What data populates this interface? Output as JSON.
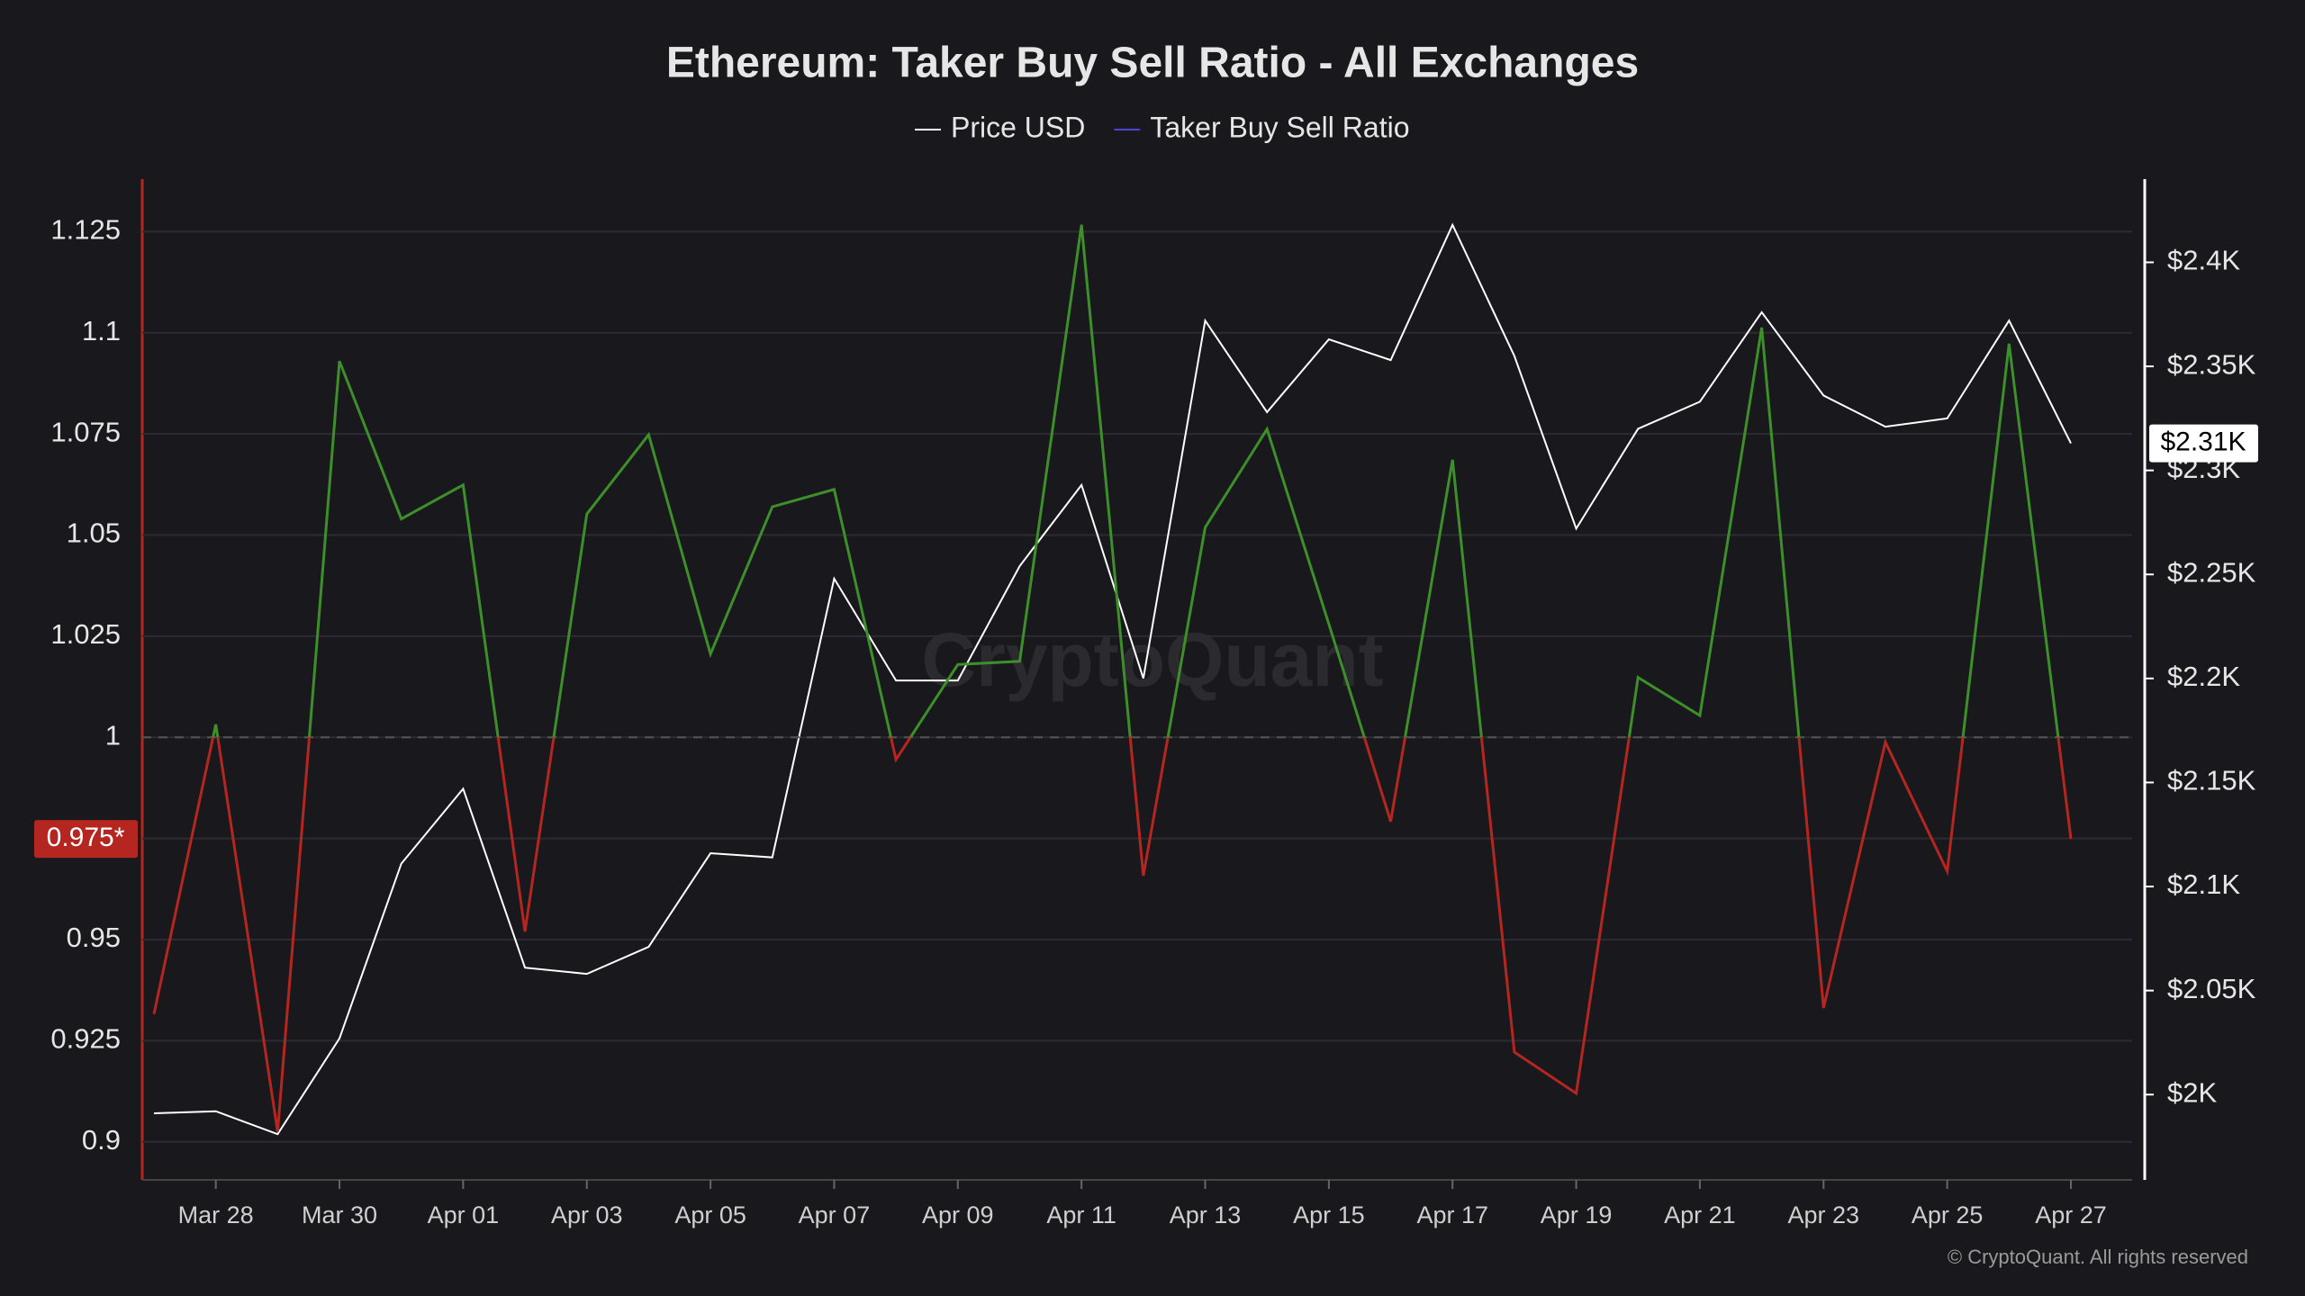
{
  "chart_data": {
    "type": "line",
    "title": "Ethereum: Taker Buy Sell Ratio - All Exchanges",
    "watermark": "CryptoQuant",
    "footer": "© CryptoQuant. All rights reserved",
    "categories": [
      null,
      "Mar 28",
      null,
      "Mar 30",
      null,
      "Apr 01",
      null,
      "Apr 03",
      null,
      "Apr 05",
      null,
      "Apr 07",
      null,
      "Apr 09",
      null,
      "Apr 11",
      null,
      "Apr 13",
      null,
      "Apr 15",
      null,
      "Apr 17",
      null,
      "Apr 19",
      null,
      "Apr 21",
      null,
      "Apr 23",
      null,
      "Apr 25",
      null,
      "Apr 27"
    ],
    "series": [
      {
        "name": "Price USD",
        "color": "#ffffff",
        "axis": "y2",
        "last_value_label": "$2.31K",
        "values": [
          1991,
          1992,
          1981,
          2027,
          2111,
          2147,
          2061,
          2058,
          2071,
          2116,
          2114,
          2248,
          2199,
          2199,
          2254,
          2293,
          2200,
          2372,
          2328,
          2363,
          2353,
          2418,
          2355,
          2272,
          2320,
          2333,
          2376,
          2336,
          2321,
          2325,
          2372,
          2313
        ]
      },
      {
        "name": "Taker Buy Sell Ratio",
        "color": "#4b45d6",
        "above_color": "#3d8f2a",
        "below_color": "#b4261f",
        "threshold": 1,
        "last_value_label": "0.975*",
        "values": [
          0.9316,
          1.0032,
          0.9025,
          1.093,
          1.054,
          1.0624,
          0.952,
          1.0552,
          1.0748,
          1.0206,
          1.057,
          1.0613,
          0.9945,
          1.018,
          1.0188,
          1.1267,
          0.9658,
          1.0519,
          1.0762,
          1.028,
          0.9792,
          1.0686,
          0.9222,
          0.912,
          1.0148,
          1.0054,
          1.1013,
          0.9331,
          0.9988,
          0.9669,
          1.0973,
          0.9749
        ]
      }
    ],
    "ylim": [
      0.8906,
      1.138
    ],
    "yticks": [
      0.9,
      0.925,
      0.95,
      0.975,
      1,
      1.025,
      1.05,
      1.075,
      1.1,
      1.125
    ],
    "y2lim": [
      1959,
      2440
    ],
    "y2ticks": [
      {
        "value": 2000,
        "label": "$2K"
      },
      {
        "value": 2050,
        "label": "$2.05K"
      },
      {
        "value": 2100,
        "label": "$2.1K"
      },
      {
        "value": 2150,
        "label": "$2.15K"
      },
      {
        "value": 2200,
        "label": "$2.2K"
      },
      {
        "value": 2250,
        "label": "$2.25K"
      },
      {
        "value": 2300,
        "label": "$2.3K"
      },
      {
        "value": 2350,
        "label": "$2.35K"
      },
      {
        "value": 2400,
        "label": "$2.4K"
      }
    ],
    "grid": true
  }
}
